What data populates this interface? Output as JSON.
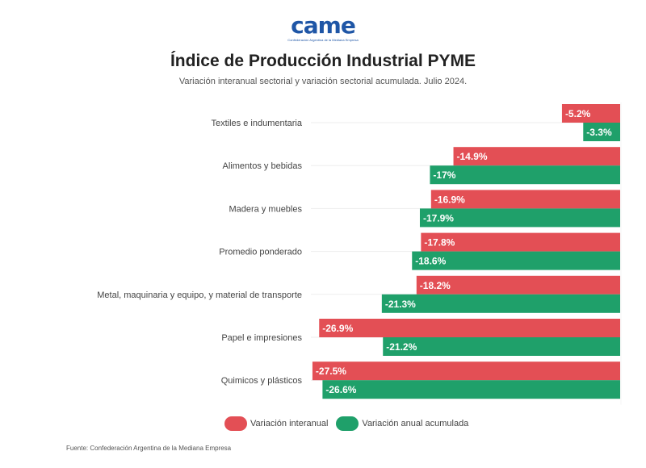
{
  "logo": {
    "mark": "came",
    "subtitle": "Confederación Argentina de la Mediana Empresa"
  },
  "title": "Índice de Producción Industrial PYME",
  "subtitle": "Variación interanual sectorial y variación sectorial acumulada. Julio 2024.",
  "source": "Fuente: Confederación Argentina de la Mediana Empresa",
  "colors": {
    "interanual": "#e34f55",
    "acumulada": "#1fa06a"
  },
  "chart_data": {
    "type": "bar",
    "orientation": "horizontal",
    "categories": [
      "Textiles e indumentaria",
      "Alimentos y bebidas",
      "Madera y muebles",
      "Promedio ponderado",
      "Metal, maquinaria y equipo, y material de transporte",
      "Papel e impresiones",
      "Quimicos y plásticos"
    ],
    "series": [
      {
        "name": "Variación interanual",
        "values": [
          -5.2,
          -14.9,
          -16.9,
          -17.8,
          -18.2,
          -26.9,
          -27.5
        ],
        "labels": [
          "-5.2%",
          "-14.9%",
          "-16.9%",
          "-17.8%",
          "-18.2%",
          "-26.9%",
          "-27.5%"
        ]
      },
      {
        "name": "Variación anual acumulada",
        "values": [
          -3.3,
          -17,
          -17.9,
          -18.6,
          -21.3,
          -21.2,
          -26.6
        ],
        "labels": [
          "-3.3%",
          "-17%",
          "-17.9%",
          "-18.6%",
          "-21.3%",
          "-21.2%",
          "-26.6%"
        ]
      }
    ],
    "xlim": [
      -28,
      0
    ],
    "grid": true,
    "legend": "bottom-center"
  }
}
